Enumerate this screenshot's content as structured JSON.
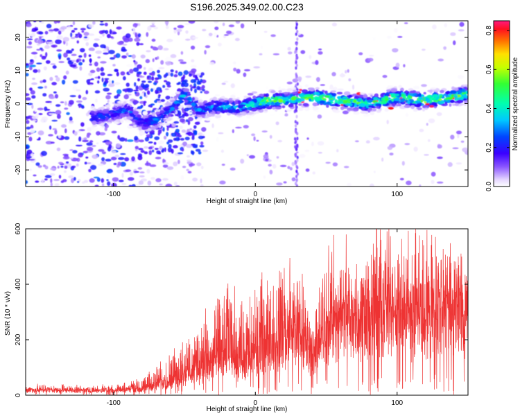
{
  "chart_data": [
    {
      "type": "heatmap",
      "title": "S196.2025.349.02.00.C23",
      "xlabel": "Height of straight line (km)",
      "ylabel": "Frequency (Hz)",
      "xlim": [
        -162,
        150
      ],
      "ylim": [
        -25,
        25
      ],
      "xticks": [
        -100,
        0,
        100
      ],
      "yticks": [
        -20,
        -10,
        0,
        10,
        20
      ],
      "colorbar": {
        "label": "Normalized spectral amplitude",
        "range": [
          0.0,
          0.85
        ],
        "ticks": [
          0.0,
          0.2,
          0.4,
          0.6,
          0.8
        ]
      },
      "ridge": {
        "description": "main high-amplitude band near 0 Hz",
        "x": [
          -110,
          -90,
          -80,
          -70,
          -60,
          -50,
          -40,
          -30,
          -20,
          -10,
          0,
          10,
          20,
          40,
          60,
          80,
          100,
          120,
          140,
          150
        ],
        "y": [
          -4,
          -2,
          -6,
          -5,
          -2,
          3,
          -2,
          -1,
          -1,
          -1,
          0,
          1,
          1,
          2,
          1,
          0,
          2,
          1,
          2,
          3
        ],
        "amplitude": [
          0.25,
          0.3,
          0.25,
          0.3,
          0.3,
          0.35,
          0.3,
          0.35,
          0.35,
          0.35,
          0.45,
          0.65,
          0.5,
          0.55,
          0.55,
          0.5,
          0.55,
          0.6,
          0.55,
          0.5
        ]
      }
    },
    {
      "type": "line",
      "xlabel": "Height of straight line (km)",
      "ylabel": "SNR (10 * v/v)",
      "xlim": [
        -162,
        150
      ],
      "ylim": [
        0,
        600
      ],
      "xticks": [
        -100,
        0,
        100
      ],
      "yticks": [
        0,
        200,
        400,
        600
      ],
      "series": [
        {
          "name": "SNR",
          "color": "#ee3333",
          "envelope_x": [
            -162,
            -140,
            -120,
            -100,
            -80,
            -75,
            -60,
            -50,
            -40,
            -30,
            -20,
            -10,
            0,
            10,
            20,
            30,
            40,
            50,
            60,
            70,
            80,
            90,
            100,
            110,
            120,
            130,
            140,
            150
          ],
          "envelope_base": [
            15,
            15,
            15,
            15,
            18,
            25,
            40,
            60,
            70,
            80,
            110,
            90,
            110,
            140,
            170,
            200,
            120,
            200,
            230,
            240,
            220,
            250,
            260,
            230,
            250,
            270,
            260,
            260
          ],
          "envelope_peak": [
            35,
            35,
            30,
            35,
            60,
            80,
            150,
            200,
            250,
            320,
            400,
            330,
            380,
            420,
            440,
            450,
            260,
            480,
            520,
            480,
            560,
            580,
            560,
            520,
            600,
            560,
            540,
            500
          ]
        }
      ]
    }
  ]
}
